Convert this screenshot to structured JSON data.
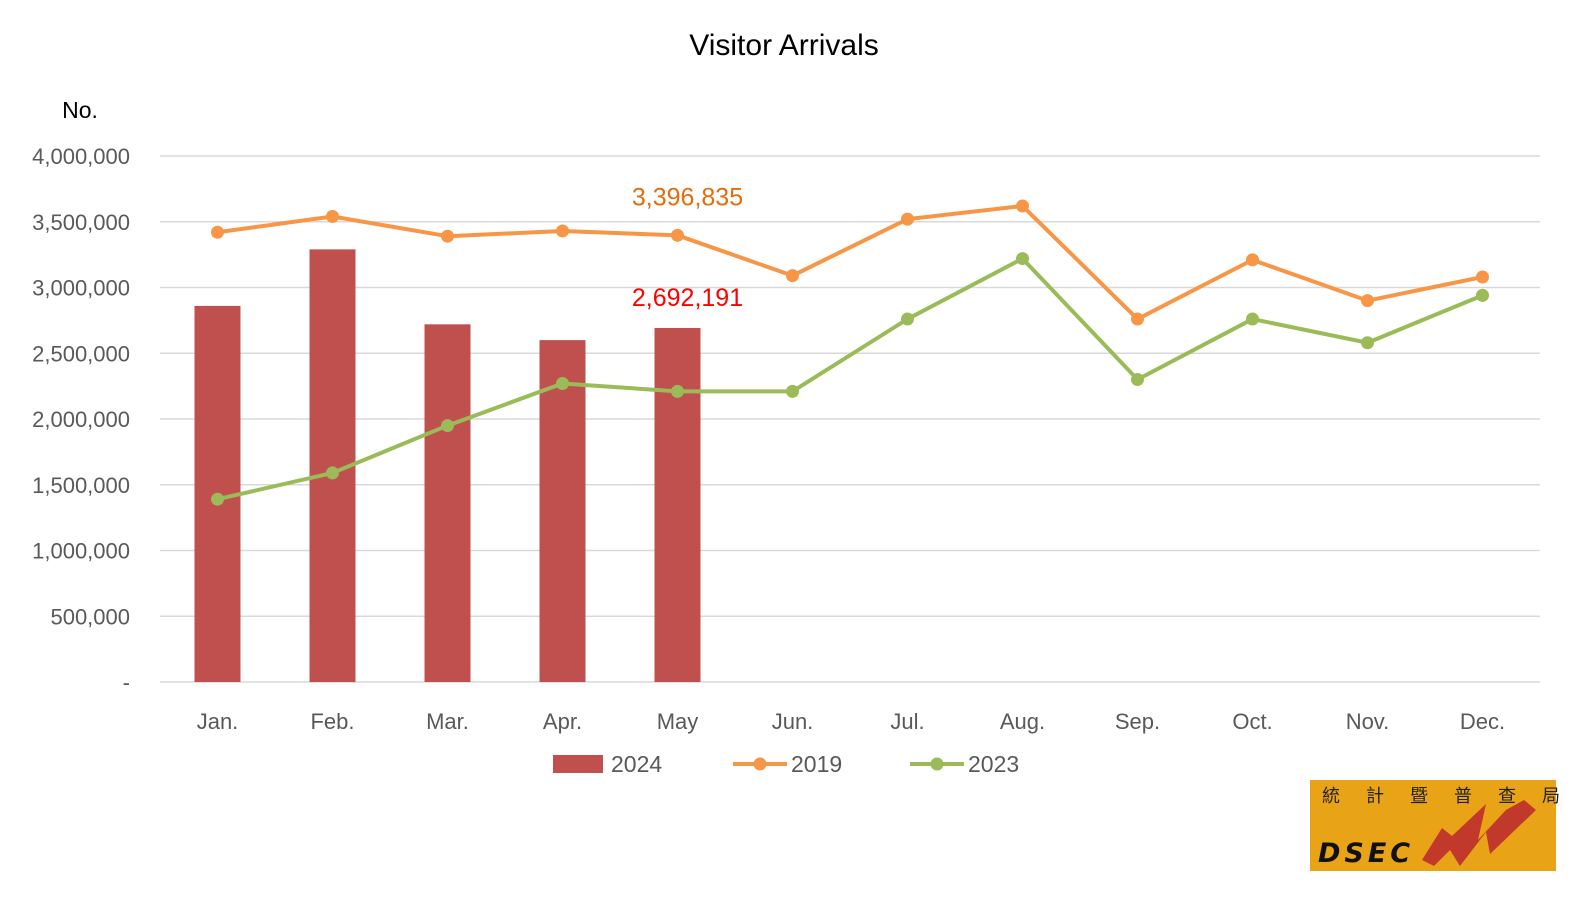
{
  "chart_data": {
    "type": "bar",
    "title": "Visitor Arrivals",
    "ylabel": "No.",
    "xlabel": "",
    "ylim": [
      0,
      4000000
    ],
    "yticks": [
      "-",
      "500,000",
      "1,000,000",
      "1,500,000",
      "2,000,000",
      "2,500,000",
      "3,000,000",
      "3,500,000",
      "4,000,000"
    ],
    "ytick_values": [
      0,
      500000,
      1000000,
      1500000,
      2000000,
      2500000,
      3000000,
      3500000,
      4000000
    ],
    "grid": true,
    "legend_position": "bottom",
    "categories": [
      "Jan.",
      "Feb.",
      "Mar.",
      "Apr.",
      "May",
      "Jun.",
      "Jul.",
      "Aug.",
      "Sep.",
      "Oct.",
      "Nov.",
      "Dec."
    ],
    "series": [
      {
        "name": "2024",
        "type": "bar",
        "color": "#C0504D",
        "values": [
          2860000,
          3290000,
          2720000,
          2600000,
          2692191,
          null,
          null,
          null,
          null,
          null,
          null,
          null
        ]
      },
      {
        "name": "2019",
        "type": "line",
        "color": "#F79646",
        "values": [
          3420000,
          3540000,
          3390000,
          3430000,
          3396835,
          3090000,
          3520000,
          3620000,
          2760000,
          3210000,
          2900000,
          3080000
        ]
      },
      {
        "name": "2023",
        "type": "line",
        "color": "#9BBB59",
        "values": [
          1390000,
          1590000,
          1950000,
          2270000,
          2210000,
          2210000,
          2760000,
          3220000,
          2300000,
          2760000,
          2580000,
          2940000
        ]
      }
    ],
    "annotations": [
      {
        "text": "3,396,835",
        "series": "2019",
        "category": "May",
        "color": "#E46C0A"
      },
      {
        "text": "2,692,191",
        "series": "2024",
        "category": "May",
        "color": "#FF0000"
      }
    ]
  },
  "logo": {
    "chinese": [
      "統",
      "計",
      "暨",
      "普",
      "查",
      "局"
    ],
    "english": "DSEC",
    "background": "#E8A317",
    "bolt_color": "#C0392B"
  }
}
